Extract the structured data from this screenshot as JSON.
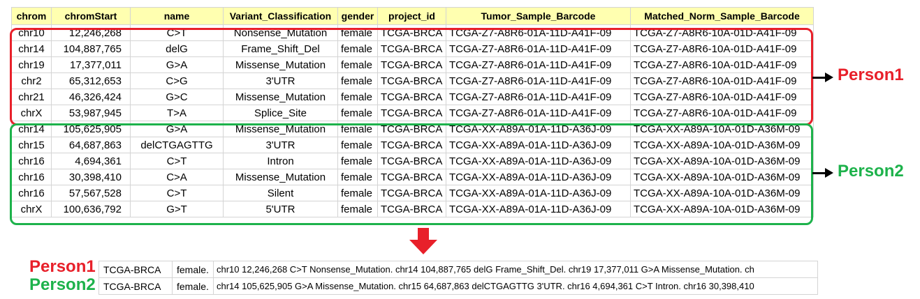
{
  "table": {
    "headers": [
      "chrom",
      "chromStart",
      "name",
      "Variant_Classification",
      "gender",
      "project_id",
      "Tumor_Sample_Barcode",
      "Matched_Norm_Sample_Barcode"
    ],
    "rows": [
      [
        "chr10",
        "12,246,268",
        "C>T",
        "Nonsense_Mutation",
        "female",
        "TCGA-BRCA",
        "TCGA-Z7-A8R6-01A-11D-A41F-09",
        "TCGA-Z7-A8R6-10A-01D-A41F-09"
      ],
      [
        "chr14",
        "104,887,765",
        "delG",
        "Frame_Shift_Del",
        "female",
        "TCGA-BRCA",
        "TCGA-Z7-A8R6-01A-11D-A41F-09",
        "TCGA-Z7-A8R6-10A-01D-A41F-09"
      ],
      [
        "chr19",
        "17,377,011",
        "G>A",
        "Missense_Mutation",
        "female",
        "TCGA-BRCA",
        "TCGA-Z7-A8R6-01A-11D-A41F-09",
        "TCGA-Z7-A8R6-10A-01D-A41F-09"
      ],
      [
        "chr2",
        "65,312,653",
        "C>G",
        "3'UTR",
        "female",
        "TCGA-BRCA",
        "TCGA-Z7-A8R6-01A-11D-A41F-09",
        "TCGA-Z7-A8R6-10A-01D-A41F-09"
      ],
      [
        "chr21",
        "46,326,424",
        "G>C",
        "Missense_Mutation",
        "female",
        "TCGA-BRCA",
        "TCGA-Z7-A8R6-01A-11D-A41F-09",
        "TCGA-Z7-A8R6-10A-01D-A41F-09"
      ],
      [
        "chrX",
        "53,987,945",
        "T>A",
        "Splice_Site",
        "female",
        "TCGA-BRCA",
        "TCGA-Z7-A8R6-01A-11D-A41F-09",
        "TCGA-Z7-A8R6-10A-01D-A41F-09"
      ],
      [
        "chr14",
        "105,625,905",
        "G>A",
        "Missense_Mutation",
        "female",
        "TCGA-BRCA",
        "TCGA-XX-A89A-01A-11D-A36J-09",
        "TCGA-XX-A89A-10A-01D-A36M-09"
      ],
      [
        "chr15",
        "64,687,863",
        "delCTGAGTTG",
        "3'UTR",
        "female",
        "TCGA-BRCA",
        "TCGA-XX-A89A-01A-11D-A36J-09",
        "TCGA-XX-A89A-10A-01D-A36M-09"
      ],
      [
        "chr16",
        "4,694,361",
        "C>T",
        "Intron",
        "female",
        "TCGA-BRCA",
        "TCGA-XX-A89A-01A-11D-A36J-09",
        "TCGA-XX-A89A-10A-01D-A36M-09"
      ],
      [
        "chr16",
        "30,398,410",
        "C>A",
        "Missense_Mutation",
        "female",
        "TCGA-BRCA",
        "TCGA-XX-A89A-01A-11D-A36J-09",
        "TCGA-XX-A89A-10A-01D-A36M-09"
      ],
      [
        "chr16",
        "57,567,528",
        "C>T",
        "Silent",
        "female",
        "TCGA-BRCA",
        "TCGA-XX-A89A-01A-11D-A36J-09",
        "TCGA-XX-A89A-10A-01D-A36M-09"
      ],
      [
        "chrX",
        "100,636,792",
        "G>T",
        "5'UTR",
        "female",
        "TCGA-BRCA",
        "TCGA-XX-A89A-01A-11D-A36J-09",
        "TCGA-XX-A89A-10A-01D-A36M-09"
      ]
    ]
  },
  "groups": [
    {
      "label": "Person1",
      "color": "#e8202a"
    },
    {
      "label": "Person2",
      "color": "#1db24b"
    }
  ],
  "summary": [
    {
      "label": "Person1",
      "project": "TCGA-BRCA",
      "gender": "female.",
      "sequence": "chr10 12,246,268 C>T Nonsense_Mutation. chr14 104,887,765 delG Frame_Shift_Del. chr19 17,377,011 G>A Missense_Mutation. ch"
    },
    {
      "label": "Person2",
      "project": "TCGA-BRCA",
      "gender": "female.",
      "sequence": "chr14 105,625,905 G>A Missense_Mutation. chr15 64,687,863 delCTGAGTTG 3'UTR. chr16 4,694,361 C>T Intron. chr16 30,398,410"
    }
  ],
  "colors": {
    "header_fill": "#ffffb0",
    "down_arrow": "#e8202a"
  }
}
